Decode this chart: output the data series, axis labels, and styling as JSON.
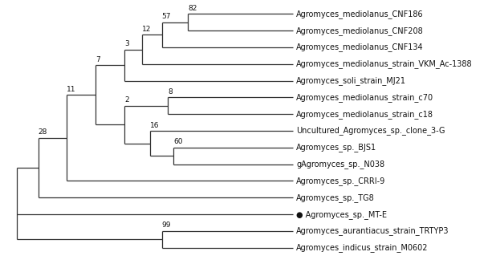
{
  "taxa": [
    "Agromyces_mediolanus_CNF186",
    "Agromyces_mediolanus_CNF208",
    "Agromyces_mediolanus_CNF134",
    "Agromyces_mediolanus_strain_VKM_Ac-1388",
    "Agromyces_soli_strain_MJ21",
    "Agromyces_mediolanus_strain_c70",
    "Agromyces_mediolanus_strain_c18",
    "Uncultured_Agromyces_sp._clone_3-G",
    "Agromyces_sp._BJS1",
    "gAgromyces_sp._N038",
    "Agromyces_sp._CRRI-9",
    "Agromyces_sp._TG8",
    "Agromyces_sp._MT-E",
    "Agromyces_aurantiacus_strain_TRTYP3",
    "Agromyces_indicus_strain_M0602"
  ],
  "highlight_taxon": "Agromyces_sp._MT-E",
  "highlight_marker": "●",
  "tree_color": "#333333",
  "text_color": "#111111",
  "background_color": "#ffffff",
  "figsize": [
    6.13,
    3.24
  ],
  "dpi": 100,
  "font_size": 7.0,
  "bootstrap_font_size": 6.5,
  "line_width": 0.9
}
